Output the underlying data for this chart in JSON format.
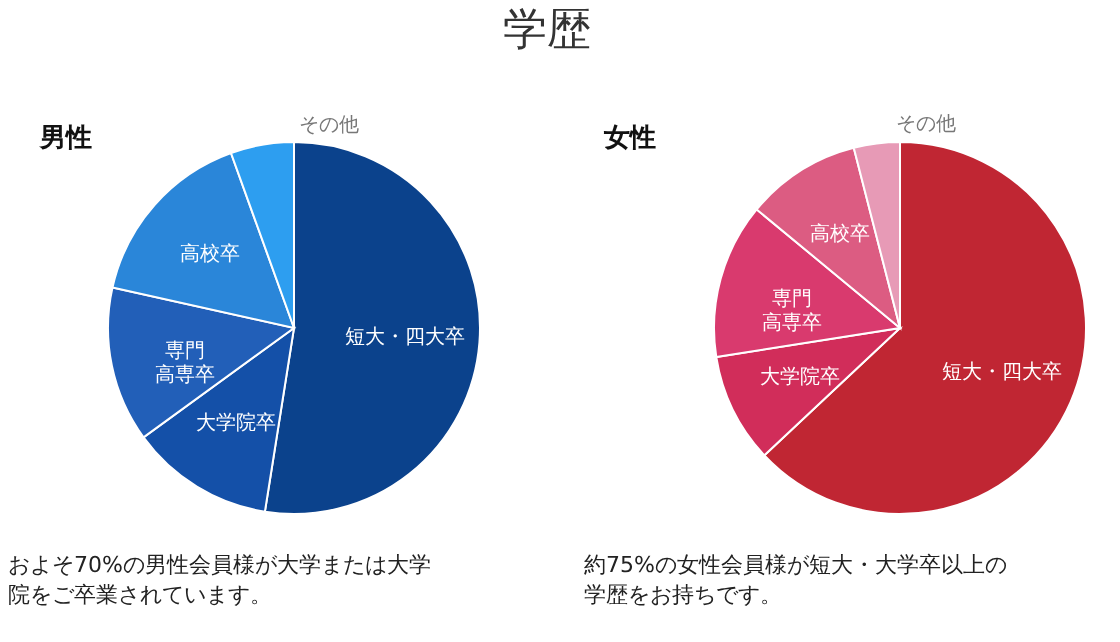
{
  "chart_data": [
    {
      "type": "pie",
      "title": "学歴",
      "subtitle": "男性",
      "categories": [
        "短大・四大卒",
        "大学院卒",
        "専門高専卒",
        "高校卒",
        "その他"
      ],
      "values": [
        52.5,
        12.5,
        13.5,
        16,
        5.5
      ],
      "colors": [
        "#0b428c",
        "#1450a8",
        "#225fb8",
        "#2a86d9",
        "#2d9ef0"
      ],
      "annotations": [
        "およそ70%の男性会員様が大学または大学院をご卒業されています。"
      ]
    },
    {
      "type": "pie",
      "subtitle": "女性",
      "categories": [
        "短大・四大卒",
        "大学院卒",
        "専門高専卒",
        "高校卒",
        "その他"
      ],
      "values": [
        63,
        9.5,
        13.5,
        10,
        4
      ],
      "colors": [
        "#c02633",
        "#d12d5a",
        "#d93a6e",
        "#dc5c82",
        "#e79ab6"
      ],
      "annotations": [
        "約75%の女性会員様が短大・大学卒以上の学歴をお持ちです。"
      ]
    }
  ]
}
